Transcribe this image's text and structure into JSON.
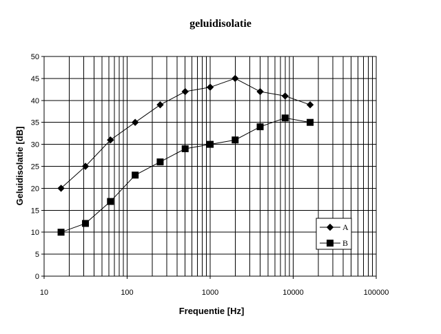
{
  "chart_data": {
    "type": "line",
    "title": "geluidisolatie",
    "xlabel": "Frequentie [Hz]",
    "ylabel": "Geluidisolatie [dB]",
    "x_scale": "log",
    "xlim": [
      10,
      100000
    ],
    "ylim": [
      0,
      50
    ],
    "x_ticks": [
      10,
      100,
      1000,
      10000,
      100000
    ],
    "y_ticks": [
      0,
      5,
      10,
      15,
      20,
      25,
      30,
      35,
      40,
      45,
      50
    ],
    "grid": true,
    "legend_position": "bottom-right",
    "x": [
      16,
      31.5,
      63,
      125,
      250,
      500,
      1000,
      2000,
      4000,
      8000,
      16000
    ],
    "series": [
      {
        "name": "A",
        "marker": "diamond",
        "color": "#000000",
        "values": [
          20,
          25,
          31,
          35,
          39,
          42,
          43,
          45,
          42,
          41,
          39
        ]
      },
      {
        "name": "B",
        "marker": "square",
        "color": "#000000",
        "values": [
          10,
          12,
          17,
          23,
          26,
          29,
          30,
          31,
          34,
          36,
          35
        ]
      }
    ]
  }
}
